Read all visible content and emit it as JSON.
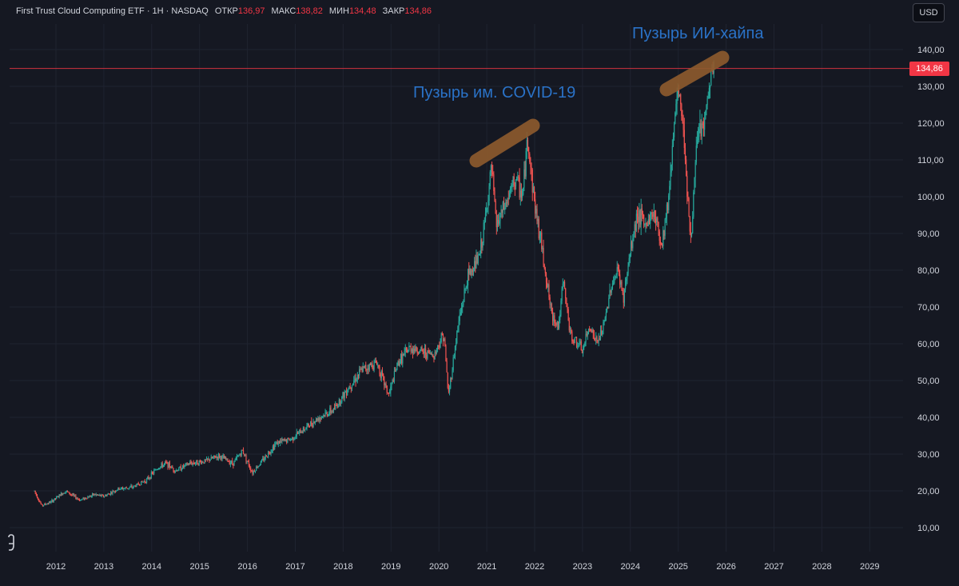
{
  "header": {
    "title": "First Trust Cloud Computing ETF · 1Н · NASDAQ",
    "open_label": "ОТКР",
    "open_value": "136,97",
    "high_label": "МАКС",
    "high_value": "138,82",
    "low_label": "МИН",
    "low_value": "134,48",
    "close_label": "ЗАКР",
    "close_value": "134,86"
  },
  "currency_button": "USD",
  "last_price_label": "134,86",
  "colors": {
    "background": "#151822",
    "up": "#26a69a",
    "down": "#ef5350",
    "price_line": "#f23645",
    "annotation_text": "#2a72c7",
    "annotation_highlight": "#8c5a2d",
    "grid": "#1f2330"
  },
  "annotations": [
    {
      "text": "Пузырь им. COVID-19"
    },
    {
      "text": "Пузырь ИИ-хайпа"
    }
  ],
  "chart_data": {
    "type": "candlestick",
    "title": "First Trust Cloud Computing ETF",
    "y_ticks": [
      "10,00",
      "20,00",
      "30,00",
      "40,00",
      "50,00",
      "60,00",
      "70,00",
      "80,00",
      "90,00",
      "100,00",
      "110,00",
      "120,00",
      "130,00",
      "140,00"
    ],
    "x_ticks": [
      "2012",
      "2013",
      "2014",
      "2015",
      "2016",
      "2017",
      "2018",
      "2019",
      "2020",
      "2021",
      "2022",
      "2023",
      "2024",
      "2025",
      "2026",
      "2027",
      "2028",
      "2029"
    ],
    "ylim": [
      5,
      150
    ],
    "xlim": [
      2011.3,
      2029.6
    ],
    "last_price": 134.86,
    "grid": true,
    "approx_path": [
      [
        2011.55,
        20
      ],
      [
        2011.7,
        16
      ],
      [
        2011.9,
        17
      ],
      [
        2012.2,
        20
      ],
      [
        2012.5,
        17.5
      ],
      [
        2012.8,
        19
      ],
      [
        2013.0,
        18.5
      ],
      [
        2013.3,
        20.5
      ],
      [
        2013.6,
        21
      ],
      [
        2013.9,
        23
      ],
      [
        2014.1,
        26
      ],
      [
        2014.3,
        27.5
      ],
      [
        2014.5,
        25.5
      ],
      [
        2014.8,
        27.5
      ],
      [
        2015.1,
        28
      ],
      [
        2015.4,
        29.5
      ],
      [
        2015.7,
        27.5
      ],
      [
        2015.9,
        31
      ],
      [
        2016.1,
        25
      ],
      [
        2016.3,
        28
      ],
      [
        2016.6,
        33
      ],
      [
        2016.9,
        34
      ],
      [
        2017.2,
        37
      ],
      [
        2017.5,
        40
      ],
      [
        2017.8,
        42
      ],
      [
        2018.1,
        48
      ],
      [
        2018.4,
        53
      ],
      [
        2018.7,
        55
      ],
      [
        2018.95,
        46
      ],
      [
        2019.15,
        55
      ],
      [
        2019.4,
        59
      ],
      [
        2019.6,
        58
      ],
      [
        2019.9,
        57
      ],
      [
        2020.1,
        63
      ],
      [
        2020.2,
        46
      ],
      [
        2020.4,
        65
      ],
      [
        2020.6,
        78
      ],
      [
        2020.85,
        84
      ],
      [
        2020.95,
        92
      ],
      [
        2021.1,
        108
      ],
      [
        2021.2,
        92
      ],
      [
        2021.4,
        98
      ],
      [
        2021.6,
        105
      ],
      [
        2021.75,
        100
      ],
      [
        2021.85,
        116
      ],
      [
        2022.0,
        98
      ],
      [
        2022.2,
        82
      ],
      [
        2022.35,
        68
      ],
      [
        2022.5,
        65
      ],
      [
        2022.6,
        77
      ],
      [
        2022.75,
        62
      ],
      [
        2022.9,
        60
      ],
      [
        2023.0,
        58
      ],
      [
        2023.15,
        65
      ],
      [
        2023.3,
        60
      ],
      [
        2023.45,
        65
      ],
      [
        2023.6,
        76
      ],
      [
        2023.75,
        80
      ],
      [
        2023.85,
        72
      ],
      [
        2024.0,
        85
      ],
      [
        2024.15,
        96
      ],
      [
        2024.3,
        92
      ],
      [
        2024.5,
        96
      ],
      [
        2024.65,
        87
      ],
      [
        2024.8,
        100
      ],
      [
        2024.9,
        118
      ],
      [
        2025.0,
        129
      ],
      [
        2025.1,
        120
      ],
      [
        2025.2,
        100
      ],
      [
        2025.27,
        86
      ],
      [
        2025.35,
        110
      ],
      [
        2025.45,
        118
      ],
      [
        2025.55,
        120
      ],
      [
        2025.65,
        130
      ],
      [
        2025.75,
        136.5
      ]
    ]
  }
}
